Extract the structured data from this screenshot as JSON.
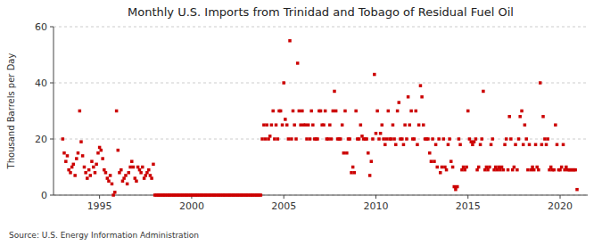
{
  "chart_data": {
    "type": "scatter",
    "title": "Monthly U.S. Imports from Trinidad and Tobago of Residual Fuel Oil",
    "ylabel": "Thousand Barrels per Day",
    "annotations": [
      "Source: U.S. Energy Information Administration"
    ],
    "color": "#cc0000",
    "marker": "square",
    "grid": true,
    "xlim": [
      1992.5,
      2021.5
    ],
    "xticks": [
      1995,
      2000,
      2005,
      2010,
      2015,
      2020
    ],
    "ylim": [
      0,
      60
    ],
    "yticks": [
      0,
      20,
      40,
      60
    ],
    "x": [
      1993.0,
      1993.08,
      1993.17,
      1993.25,
      1993.33,
      1993.42,
      1993.5,
      1993.58,
      1993.67,
      1993.75,
      1993.83,
      1993.92,
      1994.0,
      1994.08,
      1994.17,
      1994.25,
      1994.33,
      1994.42,
      1994.5,
      1994.58,
      1994.67,
      1994.75,
      1994.83,
      1994.92,
      1995.0,
      1995.08,
      1995.17,
      1995.25,
      1995.33,
      1995.42,
      1995.5,
      1995.58,
      1995.67,
      1995.75,
      1995.83,
      1995.92,
      1996.0,
      1996.08,
      1996.17,
      1996.25,
      1996.33,
      1996.42,
      1996.5,
      1996.58,
      1996.67,
      1996.75,
      1996.83,
      1996.92,
      1997.0,
      1997.08,
      1997.17,
      1997.25,
      1997.33,
      1997.42,
      1997.5,
      1997.58,
      1997.67,
      1997.75,
      1997.83,
      1997.92,
      1998.0,
      1998.08,
      1998.17,
      1998.25,
      1998.33,
      1998.42,
      1998.5,
      1998.58,
      1998.67,
      1998.75,
      1998.83,
      1998.92,
      1999.0,
      1999.08,
      1999.17,
      1999.25,
      1999.33,
      1999.42,
      1999.5,
      1999.58,
      1999.67,
      1999.75,
      1999.83,
      1999.92,
      2000.0,
      2000.08,
      2000.17,
      2000.25,
      2000.33,
      2000.42,
      2000.5,
      2000.58,
      2000.67,
      2000.75,
      2000.83,
      2000.92,
      2001.0,
      2001.08,
      2001.17,
      2001.25,
      2001.33,
      2001.42,
      2001.5,
      2001.58,
      2001.67,
      2001.75,
      2001.83,
      2001.92,
      2002.0,
      2002.08,
      2002.17,
      2002.25,
      2002.33,
      2002.42,
      2002.5,
      2002.58,
      2002.67,
      2002.75,
      2002.83,
      2002.92,
      2003.0,
      2003.08,
      2003.17,
      2003.25,
      2003.33,
      2003.42,
      2003.5,
      2003.58,
      2003.67,
      2003.75,
      2003.83,
      2003.92,
      2004.0,
      2004.08,
      2004.17,
      2004.25,
      2004.33,
      2004.42,
      2004.5,
      2004.58,
      2004.67,
      2004.75,
      2004.83,
      2004.92,
      2005.0,
      2005.08,
      2005.17,
      2005.25,
      2005.33,
      2005.42,
      2005.5,
      2005.58,
      2005.67,
      2005.75,
      2005.83,
      2005.92,
      2006.0,
      2006.08,
      2006.17,
      2006.25,
      2006.33,
      2006.42,
      2006.5,
      2006.58,
      2006.67,
      2006.75,
      2006.83,
      2006.92,
      2007.0,
      2007.08,
      2007.17,
      2007.25,
      2007.33,
      2007.42,
      2007.5,
      2007.58,
      2007.67,
      2007.75,
      2007.83,
      2007.92,
      2008.0,
      2008.08,
      2008.17,
      2008.25,
      2008.33,
      2008.42,
      2008.5,
      2008.58,
      2008.67,
      2008.75,
      2008.83,
      2008.92,
      2009.0,
      2009.08,
      2009.17,
      2009.25,
      2009.33,
      2009.42,
      2009.5,
      2009.58,
      2009.67,
      2009.75,
      2009.83,
      2009.92,
      2010.0,
      2010.08,
      2010.17,
      2010.25,
      2010.33,
      2010.42,
      2010.5,
      2010.58,
      2010.67,
      2010.75,
      2010.83,
      2010.92,
      2011.0,
      2011.08,
      2011.17,
      2011.25,
      2011.33,
      2011.42,
      2011.5,
      2011.58,
      2011.67,
      2011.75,
      2011.83,
      2011.92,
      2012.0,
      2012.08,
      2012.17,
      2012.25,
      2012.33,
      2012.42,
      2012.5,
      2012.58,
      2012.67,
      2012.75,
      2012.83,
      2012.92,
      2013.0,
      2013.08,
      2013.17,
      2013.25,
      2013.33,
      2013.42,
      2013.5,
      2013.58,
      2013.67,
      2013.75,
      2013.83,
      2013.92,
      2014.0,
      2014.08,
      2014.17,
      2014.25,
      2014.33,
      2014.42,
      2014.5,
      2014.58,
      2014.67,
      2014.75,
      2014.83,
      2014.92,
      2015.0,
      2015.08,
      2015.17,
      2015.25,
      2015.33,
      2015.42,
      2015.5,
      2015.58,
      2015.67,
      2015.75,
      2015.83,
      2015.92,
      2016.0,
      2016.08,
      2016.17,
      2016.25,
      2016.33,
      2016.42,
      2016.5,
      2016.58,
      2016.67,
      2016.75,
      2016.83,
      2016.92,
      2017.0,
      2017.08,
      2017.17,
      2017.25,
      2017.33,
      2017.42,
      2017.5,
      2017.58,
      2017.67,
      2017.75,
      2017.83,
      2017.92,
      2018.0,
      2018.08,
      2018.17,
      2018.25,
      2018.33,
      2018.42,
      2018.5,
      2018.58,
      2018.67,
      2018.75,
      2018.83,
      2018.92,
      2019.0,
      2019.08,
      2019.17,
      2019.25,
      2019.33,
      2019.42,
      2019.5,
      2019.58,
      2019.67,
      2019.75,
      2019.83,
      2019.92,
      2020.0,
      2020.08,
      2020.17,
      2020.25,
      2020.33,
      2020.42,
      2020.5,
      2020.58,
      2020.67,
      2020.75,
      2020.83,
      2020.92
    ],
    "values": [
      20,
      15,
      12,
      14,
      9,
      8,
      10,
      11,
      7,
      13,
      15,
      30,
      19,
      14,
      10,
      8,
      6,
      9,
      7,
      12,
      10,
      8,
      11,
      15,
      17,
      16,
      13,
      9,
      8,
      6,
      5,
      7,
      4,
      0,
      1,
      30,
      16,
      8,
      9,
      5,
      6,
      7,
      4,
      8,
      10,
      12,
      10,
      6,
      5,
      10,
      9,
      8,
      10,
      6,
      7,
      8,
      9,
      7,
      6,
      11,
      0,
      0,
      0,
      0,
      0,
      0,
      0,
      0,
      0,
      0,
      0,
      0,
      0,
      0,
      0,
      0,
      0,
      0,
      0,
      0,
      0,
      0,
      0,
      0,
      0,
      0,
      0,
      0,
      0,
      0,
      0,
      0,
      0,
      0,
      0,
      0,
      0,
      0,
      0,
      0,
      0,
      0,
      0,
      0,
      0,
      0,
      0,
      0,
      0,
      0,
      0,
      0,
      0,
      0,
      0,
      0,
      0,
      0,
      0,
      0,
      0,
      0,
      0,
      0,
      0,
      0,
      0,
      0,
      0,
      0,
      20,
      25,
      20,
      25,
      20,
      21,
      25,
      30,
      20,
      25,
      20,
      30,
      30,
      25,
      40,
      27,
      25,
      20,
      55,
      20,
      30,
      25,
      20,
      47,
      30,
      25,
      30,
      25,
      25,
      20,
      25,
      20,
      30,
      25,
      20,
      20,
      20,
      30,
      30,
      25,
      25,
      30,
      20,
      20,
      25,
      20,
      30,
      37,
      30,
      20,
      20,
      20,
      25,
      15,
      30,
      15,
      20,
      20,
      8,
      10,
      8,
      30,
      20,
      20,
      25,
      21,
      20,
      20,
      20,
      15,
      7,
      12,
      20,
      43,
      22,
      30,
      20,
      22,
      25,
      20,
      18,
      20,
      30,
      20,
      20,
      25,
      20,
      18,
      30,
      33,
      20,
      20,
      18,
      25,
      20,
      35,
      25,
      30,
      20,
      20,
      30,
      18,
      25,
      39,
      35,
      25,
      20,
      20,
      20,
      15,
      12,
      20,
      12,
      18,
      10,
      20,
      8,
      10,
      20,
      10,
      9,
      18,
      20,
      12,
      10,
      3,
      2,
      3,
      20,
      18,
      9,
      10,
      9,
      10,
      30,
      20,
      19,
      18,
      19,
      20,
      9,
      10,
      18,
      20,
      37,
      9,
      10,
      9,
      10,
      18,
      20,
      9,
      10,
      9,
      10,
      9,
      10,
      9,
      18,
      20,
      9,
      28,
      20,
      9,
      10,
      18,
      9,
      20,
      28,
      30,
      18,
      25,
      20,
      9,
      18,
      9,
      10,
      9,
      18,
      10,
      9,
      40,
      18,
      28,
      20,
      18,
      20,
      9,
      10,
      9,
      9,
      25,
      18,
      9,
      9,
      10,
      18,
      9,
      10,
      9,
      9,
      9,
      9,
      9,
      9,
      2
    ]
  }
}
